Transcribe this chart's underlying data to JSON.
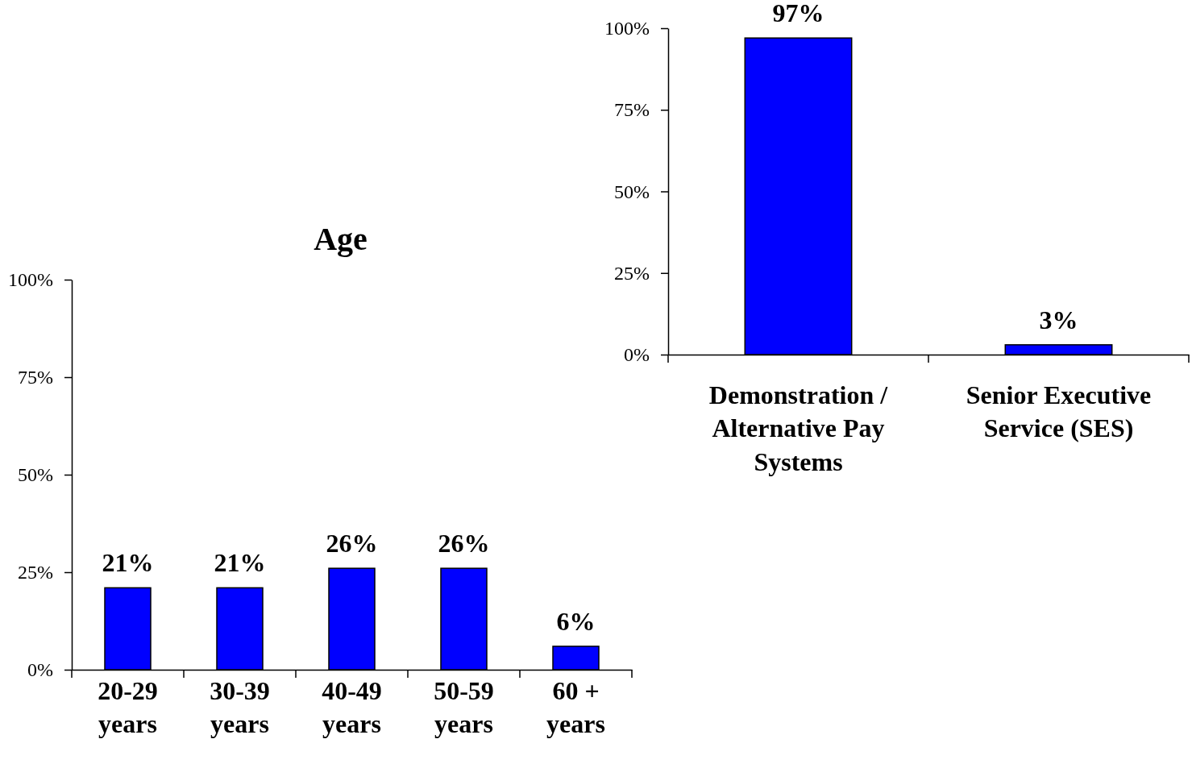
{
  "chart_data": [
    {
      "type": "bar",
      "categories": [
        "Demonstration / Alternative Pay Systems",
        "Senior Executive Service (SES)"
      ],
      "values": [
        97,
        3
      ],
      "value_labels": [
        "97%",
        "3%"
      ],
      "color": "#0000ff",
      "ylim": [
        0,
        100
      ],
      "yticks": [
        {
          "value": 0,
          "label": "0%"
        },
        {
          "value": 25,
          "label": "25%"
        },
        {
          "value": 50,
          "label": "50%"
        },
        {
          "value": 75,
          "label": "75%"
        },
        {
          "value": 100,
          "label": "100%"
        }
      ]
    },
    {
      "type": "bar",
      "title": "Age",
      "categories": [
        "20-29 years",
        "30-39 years",
        "40-49 years",
        "50-59 years",
        "60 + years"
      ],
      "values": [
        21,
        21,
        26,
        26,
        6
      ],
      "value_labels": [
        "21%",
        "21%",
        "26%",
        "26%",
        "6%"
      ],
      "color": "#0000ff",
      "ylim": [
        0,
        100
      ],
      "yticks": [
        {
          "value": 0,
          "label": "0%"
        },
        {
          "value": 25,
          "label": "25%"
        },
        {
          "value": 50,
          "label": "50%"
        },
        {
          "value": 75,
          "label": "75%"
        },
        {
          "value": 100,
          "label": "100%"
        }
      ]
    }
  ]
}
